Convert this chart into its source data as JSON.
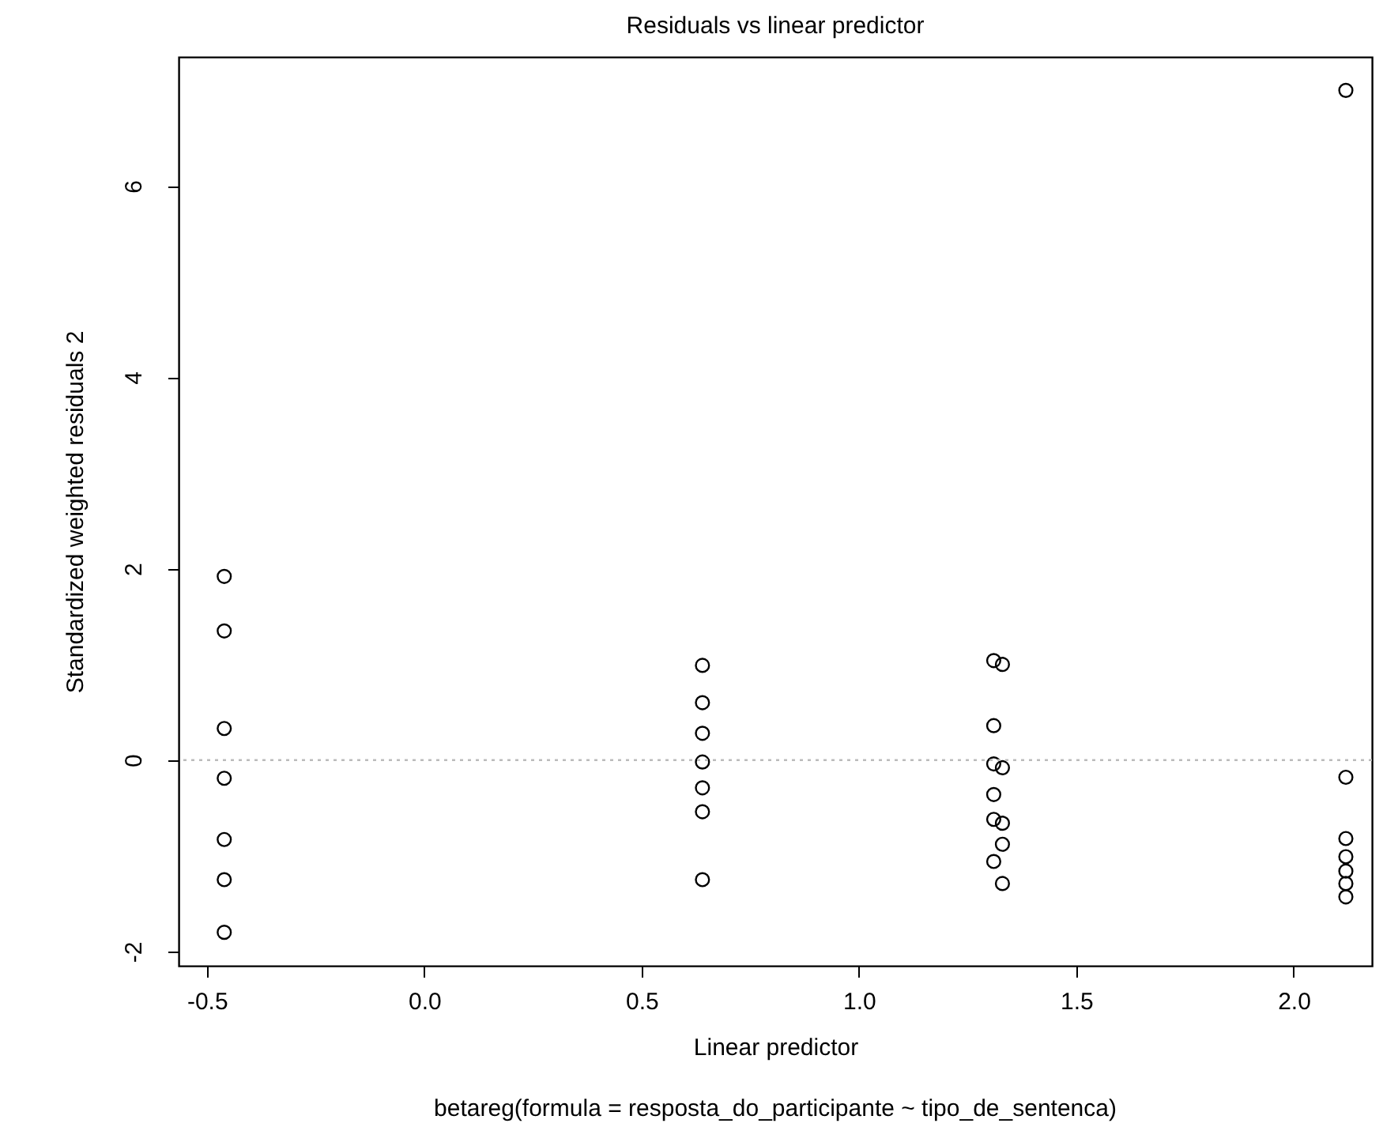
{
  "chart_data": {
    "type": "scatter",
    "title": "Residuals vs linear predictor",
    "xlabel": "Linear predictor",
    "ylabel": "Standardized weighted residuals 2",
    "annotations": [
      "betareg(formula = resposta_do_participante ~ tipo_de_sentenca)"
    ],
    "x": [
      -0.46,
      -0.46,
      -0.46,
      -0.46,
      -0.46,
      -0.46,
      -0.46,
      0.64,
      0.64,
      0.64,
      0.64,
      0.64,
      0.64,
      0.64,
      1.31,
      1.31,
      1.31,
      1.31,
      1.31,
      1.31,
      1.33,
      1.33,
      1.33,
      1.33,
      1.33,
      2.12,
      2.12,
      2.12,
      2.12,
      2.12,
      2.12,
      2.12
    ],
    "values": [
      1.92,
      1.35,
      0.33,
      -0.19,
      -0.83,
      -1.25,
      -1.8,
      0.99,
      0.6,
      0.28,
      -0.02,
      -0.29,
      -0.54,
      -1.25,
      1.04,
      0.36,
      -0.04,
      -0.36,
      -0.62,
      -1.06,
      1.0,
      -0.08,
      -0.66,
      -0.88,
      -1.29,
      7.0,
      -0.18,
      -0.82,
      -1.01,
      -1.16,
      -1.29,
      -1.43
    ],
    "color": "#000000",
    "marker": "circle",
    "grid": false,
    "xlim": [
      -0.565,
      2.18
    ],
    "ylim": [
      -2.15,
      7.35
    ],
    "xticks": [
      -0.5,
      {
        "value": 0,
        "label": "0.0"
      },
      0.5,
      {
        "value": 1,
        "label": "1.0"
      },
      1.5,
      {
        "value": 2,
        "label": "2.0"
      }
    ],
    "yticks": [
      -2,
      0,
      2,
      4,
      6
    ],
    "ref_lines": [
      {
        "axis": "y",
        "value": 0,
        "color": "#bbbbbb",
        "line_style": "dotted"
      }
    ]
  }
}
